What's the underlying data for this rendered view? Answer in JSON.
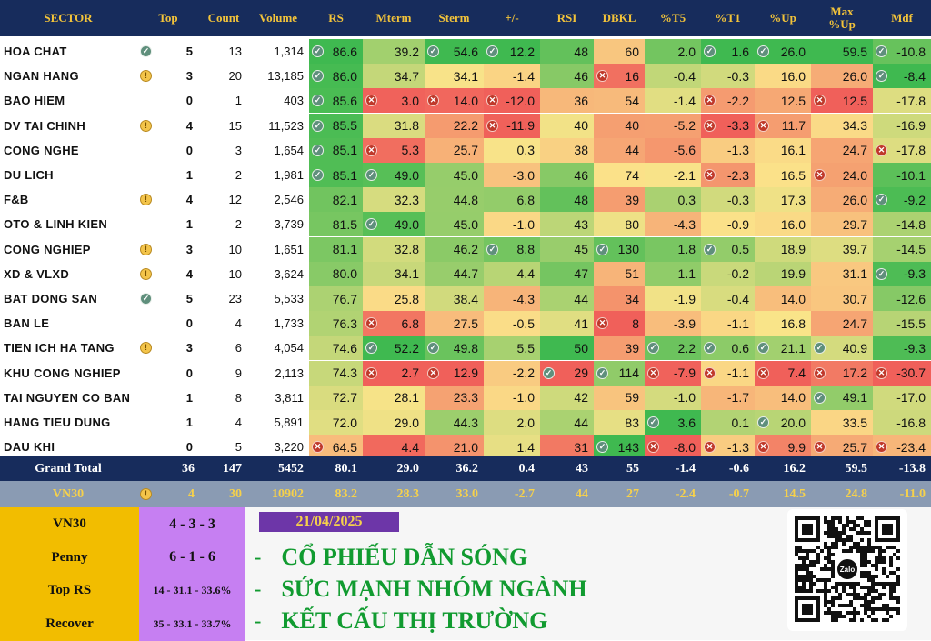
{
  "header": {
    "sector": "SECTOR",
    "top": "Top",
    "count": "Count",
    "volume": "Volume",
    "rs": "RS",
    "mterm": "Mterm",
    "sterm": "Sterm",
    "pm": "+/-",
    "rsi": "RSI",
    "dbkl": "DBKL",
    "t5": "%T5",
    "t1": "%T1",
    "up": "%Up",
    "maxup": "Max %Up",
    "mdf": "Mdf"
  },
  "rows": [
    {
      "name": "HOA CHAT",
      "status": "ok",
      "top": "5",
      "count": "13",
      "volume": "1,314",
      "rs": "86.6",
      "mterm": "39.2",
      "sterm": "54.6",
      "pm": "12.2",
      "rsi": "48",
      "dbkl": "60",
      "t5": "2.0",
      "t1": "1.6",
      "up": "26.0",
      "maxup": "59.5",
      "mdf": "-10.8",
      "icons": {
        "rs": "ok",
        "sterm": "ok",
        "pm": "ok",
        "t1": "ok",
        "up": "ok",
        "mdf": "ok"
      }
    },
    {
      "name": "NGAN HANG",
      "status": "warn",
      "top": "3",
      "count": "20",
      "volume": "13,185",
      "rs": "86.0",
      "mterm": "34.7",
      "sterm": "34.1",
      "pm": "-1.4",
      "rsi": "46",
      "dbkl": "16",
      "t5": "-0.4",
      "t1": "-0.3",
      "up": "16.0",
      "maxup": "26.0",
      "mdf": "-8.4",
      "icons": {
        "rs": "ok",
        "dbkl": "bad",
        "mdf": "ok"
      }
    },
    {
      "name": "BAO HIEM",
      "status": "",
      "top": "0",
      "count": "1",
      "volume": "403",
      "rs": "85.6",
      "mterm": "3.0",
      "sterm": "14.0",
      "pm": "-12.0",
      "rsi": "36",
      "dbkl": "54",
      "t5": "-1.4",
      "t1": "-2.2",
      "up": "12.5",
      "maxup": "12.5",
      "mdf": "-17.8",
      "icons": {
        "rs": "ok",
        "mterm": "bad",
        "sterm": "bad",
        "pm": "bad",
        "t1": "bad",
        "maxup": "bad"
      }
    },
    {
      "name": "DV TAI CHINH",
      "status": "warn",
      "top": "4",
      "count": "15",
      "volume": "11,523",
      "rs": "85.5",
      "mterm": "31.8",
      "sterm": "22.2",
      "pm": "-11.9",
      "rsi": "40",
      "dbkl": "40",
      "t5": "-5.2",
      "t1": "-3.3",
      "up": "11.7",
      "maxup": "34.3",
      "mdf": "-16.9",
      "icons": {
        "rs": "ok",
        "pm": "bad",
        "t1": "bad",
        "up": "bad"
      }
    },
    {
      "name": "CONG NGHE",
      "status": "",
      "top": "0",
      "count": "3",
      "volume": "1,654",
      "rs": "85.1",
      "mterm": "5.3",
      "sterm": "25.7",
      "pm": "0.3",
      "rsi": "38",
      "dbkl": "44",
      "t5": "-5.6",
      "t1": "-1.3",
      "up": "16.1",
      "maxup": "24.7",
      "mdf": "-17.8",
      "icons": {
        "rs": "ok",
        "mterm": "bad",
        "mdf": "bad"
      }
    },
    {
      "name": "DU LICH",
      "status": "",
      "top": "1",
      "count": "2",
      "volume": "1,981",
      "rs": "85.1",
      "mterm": "49.0",
      "sterm": "45.0",
      "pm": "-3.0",
      "rsi": "46",
      "dbkl": "74",
      "t5": "-2.1",
      "t1": "-2.3",
      "up": "16.5",
      "maxup": "24.0",
      "mdf": "-10.1",
      "icons": {
        "rs": "ok",
        "mterm": "ok",
        "t1": "bad",
        "maxup": "bad"
      }
    },
    {
      "name": "F&B",
      "status": "warn",
      "top": "4",
      "count": "12",
      "volume": "2,546",
      "rs": "82.1",
      "mterm": "32.3",
      "sterm": "44.8",
      "pm": "6.8",
      "rsi": "48",
      "dbkl": "39",
      "t5": "0.3",
      "t1": "-0.3",
      "up": "17.3",
      "maxup": "26.0",
      "mdf": "-9.2",
      "icons": {
        "mdf": "ok"
      }
    },
    {
      "name": "OTO & LINH KIEN",
      "status": "",
      "top": "1",
      "count": "2",
      "volume": "3,739",
      "rs": "81.5",
      "mterm": "49.0",
      "sterm": "45.0",
      "pm": "-1.0",
      "rsi": "43",
      "dbkl": "80",
      "t5": "-4.3",
      "t1": "-0.9",
      "up": "16.0",
      "maxup": "29.7",
      "mdf": "-14.8",
      "icons": {
        "mterm": "ok"
      }
    },
    {
      "name": "CONG NGHIEP",
      "status": "warn",
      "top": "3",
      "count": "10",
      "volume": "1,651",
      "rs": "81.1",
      "mterm": "32.8",
      "sterm": "46.2",
      "pm": "8.8",
      "rsi": "45",
      "dbkl": "130",
      "t5": "1.8",
      "t1": "0.5",
      "up": "18.9",
      "maxup": "39.7",
      "mdf": "-14.5",
      "icons": {
        "pm": "ok",
        "dbkl": "ok",
        "t1": "ok"
      }
    },
    {
      "name": "XD & VLXD",
      "status": "warn",
      "top": "4",
      "count": "10",
      "volume": "3,624",
      "rs": "80.0",
      "mterm": "34.1",
      "sterm": "44.7",
      "pm": "4.4",
      "rsi": "47",
      "dbkl": "51",
      "t5": "1.1",
      "t1": "-0.2",
      "up": "19.9",
      "maxup": "31.1",
      "mdf": "-9.3",
      "icons": {
        "mdf": "ok"
      }
    },
    {
      "name": "BAT DONG SAN",
      "status": "ok",
      "top": "5",
      "count": "23",
      "volume": "5,533",
      "rs": "76.7",
      "mterm": "25.8",
      "sterm": "38.4",
      "pm": "-4.3",
      "rsi": "44",
      "dbkl": "34",
      "t5": "-1.9",
      "t1": "-0.4",
      "up": "14.0",
      "maxup": "30.7",
      "mdf": "-12.6",
      "icons": {}
    },
    {
      "name": "BAN LE",
      "status": "",
      "top": "0",
      "count": "4",
      "volume": "1,733",
      "rs": "76.3",
      "mterm": "6.8",
      "sterm": "27.5",
      "pm": "-0.5",
      "rsi": "41",
      "dbkl": "8",
      "t5": "-3.9",
      "t1": "-1.1",
      "up": "16.8",
      "maxup": "24.7",
      "mdf": "-15.5",
      "icons": {
        "mterm": "bad",
        "dbkl": "bad"
      }
    },
    {
      "name": "TIEN ICH HA TANG",
      "status": "warn",
      "top": "3",
      "count": "6",
      "volume": "4,054",
      "rs": "74.6",
      "mterm": "52.2",
      "sterm": "49.8",
      "pm": "5.5",
      "rsi": "50",
      "dbkl": "39",
      "t5": "2.2",
      "t1": "0.6",
      "up": "21.1",
      "maxup": "40.9",
      "mdf": "-9.3",
      "icons": {
        "mterm": "ok",
        "sterm": "ok",
        "t5": "ok",
        "t1": "ok",
        "up": "ok",
        "maxup": "ok"
      }
    },
    {
      "name": "KHU CONG NGHIEP",
      "status": "",
      "top": "0",
      "count": "9",
      "volume": "2,113",
      "rs": "74.3",
      "mterm": "2.7",
      "sterm": "12.9",
      "pm": "-2.2",
      "rsi": "29",
      "dbkl": "114",
      "t5": "-7.9",
      "t1": "-1.1",
      "up": "7.4",
      "maxup": "17.2",
      "mdf": "-30.7",
      "icons": {
        "mterm": "bad",
        "sterm": "bad",
        "rsi": "ok",
        "dbkl": "ok",
        "t5": "bad",
        "t1": "bad",
        "up": "bad",
        "maxup": "bad",
        "mdf": "bad"
      }
    },
    {
      "name": "TAI NGUYEN CO BAN",
      "status": "",
      "top": "1",
      "count": "8",
      "volume": "3,811",
      "rs": "72.7",
      "mterm": "28.1",
      "sterm": "23.3",
      "pm": "-1.0",
      "rsi": "42",
      "dbkl": "59",
      "t5": "-1.0",
      "t1": "-1.7",
      "up": "14.0",
      "maxup": "49.1",
      "mdf": "-17.0",
      "icons": {
        "maxup": "ok"
      }
    },
    {
      "name": "HANG TIEU DUNG",
      "status": "",
      "top": "1",
      "count": "4",
      "volume": "5,891",
      "rs": "72.0",
      "mterm": "29.0",
      "sterm": "44.3",
      "pm": "2.0",
      "rsi": "44",
      "dbkl": "83",
      "t5": "3.6",
      "t1": "0.1",
      "up": "20.0",
      "maxup": "33.5",
      "mdf": "-16.8",
      "icons": {
        "t5": "ok",
        "up": "ok"
      }
    },
    {
      "name": "DAU KHI",
      "status": "",
      "top": "0",
      "count": "5",
      "volume": "3,220",
      "rs": "64.5",
      "mterm": "4.4",
      "sterm": "21.0",
      "pm": "1.4",
      "rsi": "31",
      "dbkl": "143",
      "t5": "-8.0",
      "t1": "-1.3",
      "up": "9.9",
      "maxup": "25.7",
      "mdf": "-23.4",
      "icons": {
        "rs": "bad",
        "dbkl": "ok",
        "t5": "bad",
        "t1": "bad",
        "up": "bad",
        "maxup": "bad",
        "mdf": "bad"
      }
    }
  ],
  "grand_total": {
    "label": "Grand Total",
    "top": "36",
    "count": "147",
    "volume": "5452",
    "rs": "80.1",
    "mterm": "29.0",
    "sterm": "36.2",
    "pm": "0.4",
    "rsi": "43",
    "dbkl": "55",
    "t5": "-1.4",
    "t1": "-0.6",
    "up": "16.2",
    "maxup": "59.5",
    "mdf": "-13.8"
  },
  "vn30_row": {
    "label": "VN30",
    "status": "warn",
    "top": "4",
    "count": "30",
    "volume": "10902",
    "rs": "83.2",
    "mterm": "28.3",
    "sterm": "33.0",
    "pm": "-2.7",
    "rsi": "44",
    "dbkl": "27",
    "t5": "-2.4",
    "t1": "-0.7",
    "up": "14.5",
    "maxup": "24.8",
    "mdf": "-11.0"
  },
  "summary": [
    {
      "label": "VN30",
      "value": "4 - 3 - 3"
    },
    {
      "label": "Penny",
      "value": "6 - 1 - 6"
    },
    {
      "label": "Top RS",
      "value": "14 - 31.1 - 33.6%"
    },
    {
      "label": "Recover",
      "value": "35 - 33.1 - 33.7%"
    }
  ],
  "date": "21/04/2025",
  "slogans": [
    "CỔ PHIẾU DẪN SÓNG",
    "SỨC MẠNH NHÓM NGÀNH",
    "KẾT CẤU THỊ TRƯỜNG"
  ],
  "slogan_dash": "-",
  "qr_label": "Zalo",
  "colors": {
    "header_bg": "#172c5c",
    "header_text": "#f2c33a",
    "vn30_bg": "#8a9bb3",
    "vn30_text": "#f6d14b",
    "summary_label_bg": "#f2bd00",
    "summary_value_bg": "#c67ff2",
    "date_bg": "#6d36a8",
    "slogan": "#119b30",
    "heat_high": "#3fb950",
    "heat_mid": "#fbe48a",
    "heat_low": "#f0605a"
  }
}
